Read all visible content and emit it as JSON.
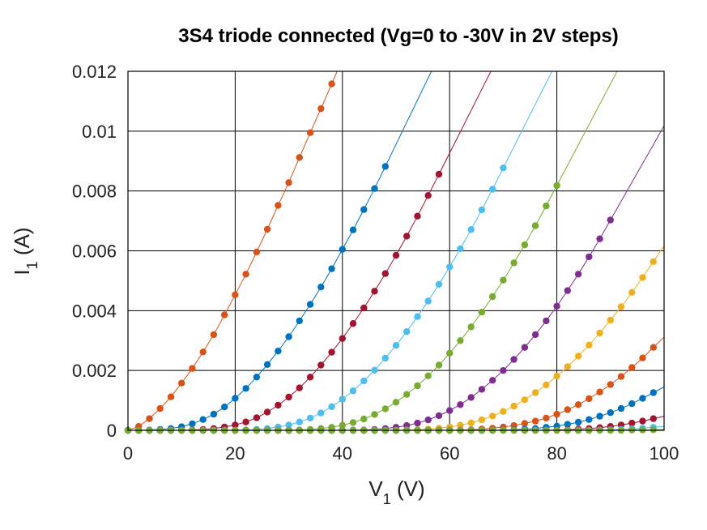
{
  "chart_data": {
    "type": "scatter",
    "title": "3S4 triode connected (Vg=0 to -30V in 2V steps)",
    "xlabel": {
      "main": "V",
      "sub": "1",
      "unit": " (V)"
    },
    "ylabel": {
      "main": "I",
      "sub": "1",
      "unit": " (A)"
    },
    "xlim": [
      0,
      100
    ],
    "ylim": [
      0,
      0.012
    ],
    "x_ticks": [
      "0",
      "20",
      "40",
      "60",
      "80",
      "100"
    ],
    "y_ticks": [
      "0",
      "0.002",
      "0.004",
      "0.006",
      "0.008",
      "0.01",
      "0.012"
    ],
    "x_tick_values": [
      0,
      20,
      40,
      60,
      80,
      100
    ],
    "y_tick_values": [
      0,
      0.002,
      0.004,
      0.006,
      0.008,
      0.01,
      0.012
    ],
    "grid": true,
    "markers": "filled circles joined by thin lines",
    "x_step": 2,
    "series": [
      {
        "color": "#d95319",
        "x": [
          0,
          2,
          4,
          6,
          8,
          10,
          12,
          14,
          16,
          18,
          20,
          22,
          24,
          26,
          28,
          30,
          32,
          34,
          36,
          38
        ],
        "values": [
          0,
          0.00013,
          0.00039,
          0.00073,
          0.00112,
          0.00158,
          0.00207,
          0.00262,
          0.0032,
          0.00386,
          0.00453,
          0.00522,
          0.00596,
          0.00672,
          0.00752,
          0.00828,
          0.00912,
          0.00995,
          0.01075,
          0.01158
        ]
      },
      {
        "color": "#0072bd",
        "x": [
          0,
          2,
          4,
          6,
          8,
          10,
          12,
          14,
          16,
          18,
          20,
          22,
          24,
          26,
          28,
          30,
          32,
          34,
          36,
          38,
          40,
          42,
          44,
          46,
          48
        ],
        "values": [
          0,
          0,
          1e-05,
          3e-05,
          6e-05,
          0.00012,
          0.00022,
          0.00036,
          0.00054,
          0.00078,
          0.00107,
          0.0014,
          0.00178,
          0.0022,
          0.00265,
          0.00313,
          0.00366,
          0.00421,
          0.00479,
          0.0054,
          0.00605,
          0.0067,
          0.00738,
          0.00808,
          0.00882
        ]
      },
      {
        "color": "#a2142f",
        "x": [
          0,
          2,
          4,
          6,
          8,
          10,
          12,
          14,
          16,
          18,
          20,
          22,
          24,
          26,
          28,
          30,
          32,
          34,
          36,
          38,
          40,
          42,
          44,
          46,
          48,
          50,
          52,
          54,
          56,
          58
        ],
        "values": [
          0,
          0,
          0,
          0,
          0,
          0,
          1e-05,
          3e-05,
          6e-05,
          0.00011,
          0.00018,
          0.00028,
          0.00042,
          0.00061,
          0.00084,
          0.00111,
          0.00142,
          0.00178,
          0.00218,
          0.00261,
          0.00307,
          0.00357,
          0.00409,
          0.00465,
          0.00524,
          0.00585,
          0.00649,
          0.00716,
          0.00785,
          0.00856
        ]
      },
      {
        "color": "#4dbeee",
        "x": [
          0,
          2,
          4,
          6,
          8,
          10,
          12,
          14,
          16,
          18,
          20,
          22,
          24,
          26,
          28,
          30,
          32,
          34,
          36,
          38,
          40,
          42,
          44,
          46,
          48,
          50,
          52,
          54,
          56,
          58,
          60,
          62,
          64,
          66,
          68,
          70
        ],
        "values": [
          0,
          0,
          0,
          0,
          0,
          0,
          0,
          0,
          0,
          0,
          0,
          1e-05,
          3e-05,
          6e-05,
          0.00011,
          0.00018,
          0.00028,
          0.00041,
          0.00058,
          0.00079,
          0.00104,
          0.00132,
          0.00165,
          0.00201,
          0.00241,
          0.00284,
          0.0033,
          0.0038,
          0.00432,
          0.00488,
          0.00546,
          0.00607,
          0.00671,
          0.00737,
          0.00806,
          0.00877
        ]
      },
      {
        "color": "#77ac30",
        "x": [
          0,
          2,
          4,
          6,
          8,
          10,
          12,
          14,
          16,
          18,
          20,
          22,
          24,
          26,
          28,
          30,
          32,
          34,
          36,
          38,
          40,
          42,
          44,
          46,
          48,
          50,
          52,
          54,
          56,
          58,
          60,
          62,
          64,
          66,
          68,
          70,
          72,
          74,
          76,
          78,
          80
        ],
        "values": [
          0,
          0,
          0,
          0,
          0,
          0,
          0,
          0,
          0,
          0,
          0,
          0,
          0,
          0,
          0,
          0,
          1e-05,
          3e-05,
          6e-05,
          0.0001,
          0.00017,
          0.00026,
          0.00038,
          0.00053,
          0.00072,
          0.00094,
          0.0012,
          0.00149,
          0.00182,
          0.00218,
          0.00258,
          0.003,
          0.00346,
          0.00395,
          0.00447,
          0.00502,
          0.0056,
          0.0062,
          0.00684,
          0.0075,
          0.00818
        ]
      },
      {
        "color": "#7e2f8e",
        "x": [
          0,
          2,
          4,
          6,
          8,
          10,
          12,
          14,
          16,
          18,
          20,
          22,
          24,
          26,
          28,
          30,
          32,
          34,
          36,
          38,
          40,
          42,
          44,
          46,
          48,
          50,
          52,
          54,
          56,
          58,
          60,
          62,
          64,
          66,
          68,
          70,
          72,
          74,
          76,
          78,
          80,
          82,
          84,
          86,
          88,
          90
        ],
        "values": [
          0,
          0,
          0,
          0,
          0,
          0,
          0,
          0,
          0,
          0,
          0,
          0,
          0,
          0,
          0,
          0,
          0,
          0,
          0,
          0,
          0,
          0,
          1e-05,
          3e-05,
          6e-05,
          0.0001,
          0.00016,
          0.00024,
          0.00035,
          0.00049,
          0.00066,
          0.00086,
          0.0011,
          0.00137,
          0.00167,
          0.002,
          0.00237,
          0.00277,
          0.0032,
          0.00366,
          0.00415,
          0.00467,
          0.00522,
          0.0058,
          0.0064,
          0.00703
        ]
      },
      {
        "color": "#edb120",
        "x": [
          0,
          2,
          4,
          6,
          8,
          10,
          12,
          14,
          16,
          18,
          20,
          22,
          24,
          26,
          28,
          30,
          32,
          34,
          36,
          38,
          40,
          42,
          44,
          46,
          48,
          50,
          52,
          54,
          56,
          58,
          60,
          62,
          64,
          66,
          68,
          70,
          72,
          74,
          76,
          78,
          80,
          82,
          84,
          86,
          88,
          90,
          92,
          94,
          96,
          98
        ],
        "values": [
          0,
          0,
          0,
          0,
          0,
          0,
          0,
          0,
          0,
          0,
          0,
          0,
          0,
          0,
          0,
          0,
          0,
          0,
          0,
          0,
          0,
          0,
          0,
          0,
          0,
          0,
          1e-05,
          2e-05,
          4e-05,
          7e-05,
          0.00011,
          0.00017,
          0.00025,
          0.00035,
          0.00048,
          0.00063,
          0.00081,
          0.00102,
          0.00126,
          0.00152,
          0.00181,
          0.00213,
          0.00248,
          0.00285,
          0.00325,
          0.00368,
          0.00413,
          0.00461,
          0.00511,
          0.00564
        ]
      },
      {
        "color": "#d95319",
        "x": [
          0,
          2,
          4,
          6,
          8,
          10,
          12,
          14,
          16,
          18,
          20,
          22,
          24,
          26,
          28,
          30,
          32,
          34,
          36,
          38,
          40,
          42,
          44,
          46,
          48,
          50,
          52,
          54,
          56,
          58,
          60,
          62,
          64,
          66,
          68,
          70,
          72,
          74,
          76,
          78,
          80,
          82,
          84,
          86,
          88,
          90,
          92,
          94,
          96,
          98
        ],
        "values": [
          0,
          0,
          0,
          0,
          0,
          0,
          0,
          0,
          0,
          0,
          0,
          0,
          0,
          0,
          0,
          0,
          0,
          0,
          0,
          0,
          0,
          0,
          0,
          0,
          0,
          0,
          0,
          0,
          0,
          0,
          0,
          1e-05,
          2e-05,
          4e-05,
          7e-05,
          0.00011,
          0.00016,
          0.00023,
          0.00031,
          0.00041,
          0.00054,
          0.00069,
          0.00086,
          0.00106,
          0.00128,
          0.00153,
          0.0018,
          0.0021,
          0.00242,
          0.00277
        ]
      },
      {
        "color": "#0072bd",
        "x": [
          0,
          2,
          4,
          6,
          8,
          10,
          12,
          14,
          16,
          18,
          20,
          22,
          24,
          26,
          28,
          30,
          32,
          34,
          36,
          38,
          40,
          42,
          44,
          46,
          48,
          50,
          52,
          54,
          56,
          58,
          60,
          62,
          64,
          66,
          68,
          70,
          72,
          74,
          76,
          78,
          80,
          82,
          84,
          86,
          88,
          90,
          92,
          94,
          96,
          98
        ],
        "values": [
          0,
          0,
          0,
          0,
          0,
          0,
          0,
          0,
          0,
          0,
          0,
          0,
          0,
          0,
          0,
          0,
          0,
          0,
          0,
          0,
          0,
          0,
          0,
          0,
          0,
          0,
          0,
          0,
          0,
          0,
          0,
          0,
          0,
          0,
          0,
          1e-05,
          2e-05,
          4e-05,
          6e-05,
          0.0001,
          0.00014,
          0.0002,
          0.00027,
          0.00036,
          0.00047,
          0.00059,
          0.00073,
          0.00089,
          0.00107,
          0.00126
        ]
      },
      {
        "color": "#a2142f",
        "x": [
          0,
          2,
          4,
          6,
          8,
          10,
          12,
          14,
          16,
          18,
          20,
          22,
          24,
          26,
          28,
          30,
          32,
          34,
          36,
          38,
          40,
          42,
          44,
          46,
          48,
          50,
          52,
          54,
          56,
          58,
          60,
          62,
          64,
          66,
          68,
          70,
          72,
          74,
          76,
          78,
          80,
          82,
          84,
          86,
          88,
          90,
          92,
          94,
          96,
          98
        ],
        "values": [
          0,
          0,
          0,
          0,
          0,
          0,
          0,
          0,
          0,
          0,
          0,
          0,
          0,
          0,
          0,
          0,
          0,
          0,
          0,
          0,
          0,
          0,
          0,
          0,
          0,
          0,
          0,
          0,
          0,
          0,
          0,
          0,
          0,
          0,
          0,
          0,
          0,
          0,
          0,
          0,
          1e-05,
          2e-05,
          4e-05,
          6e-05,
          9e-05,
          0.00013,
          0.00018,
          0.00024,
          0.00031,
          0.00039
        ]
      },
      {
        "color": "#4dbeee",
        "x": [
          0,
          2,
          4,
          6,
          8,
          10,
          12,
          14,
          16,
          18,
          20,
          22,
          24,
          26,
          28,
          30,
          32,
          34,
          36,
          38,
          40,
          42,
          44,
          46,
          48,
          50,
          52,
          54,
          56,
          58,
          60,
          62,
          64,
          66,
          68,
          70,
          72,
          74,
          76,
          78,
          80,
          82,
          84,
          86,
          88,
          90,
          92,
          94,
          96,
          98
        ],
        "values": [
          0,
          0,
          0,
          0,
          0,
          0,
          0,
          0,
          0,
          0,
          0,
          0,
          0,
          0,
          0,
          0,
          0,
          0,
          0,
          0,
          0,
          0,
          0,
          0,
          0,
          0,
          0,
          0,
          0,
          0,
          0,
          0,
          0,
          0,
          0,
          0,
          0,
          0,
          0,
          0,
          0,
          0,
          0,
          0,
          1e-05,
          2e-05,
          3e-05,
          5e-05,
          7e-05,
          0.0001
        ]
      },
      {
        "color": "#77ac30",
        "x": [
          0,
          2,
          4,
          6,
          8,
          10,
          12,
          14,
          16,
          18,
          20,
          22,
          24,
          26,
          28,
          30,
          32,
          34,
          36,
          38,
          40,
          42,
          44,
          46,
          48,
          50,
          52,
          54,
          56,
          58,
          60,
          62,
          64,
          66,
          68,
          70,
          72,
          74,
          76,
          78,
          80,
          82,
          84,
          86,
          88,
          90,
          92,
          94,
          96,
          98
        ],
        "values": [
          0,
          0,
          0,
          0,
          0,
          0,
          0,
          0,
          0,
          0,
          0,
          0,
          0,
          0,
          0,
          0,
          0,
          0,
          0,
          0,
          0,
          0,
          0,
          0,
          0,
          0,
          0,
          0,
          0,
          0,
          0,
          0,
          0,
          0,
          0,
          0,
          0,
          0,
          0,
          0,
          0,
          0,
          0,
          0,
          0,
          0,
          0,
          1e-05,
          1e-05,
          2e-05
        ]
      }
    ]
  }
}
